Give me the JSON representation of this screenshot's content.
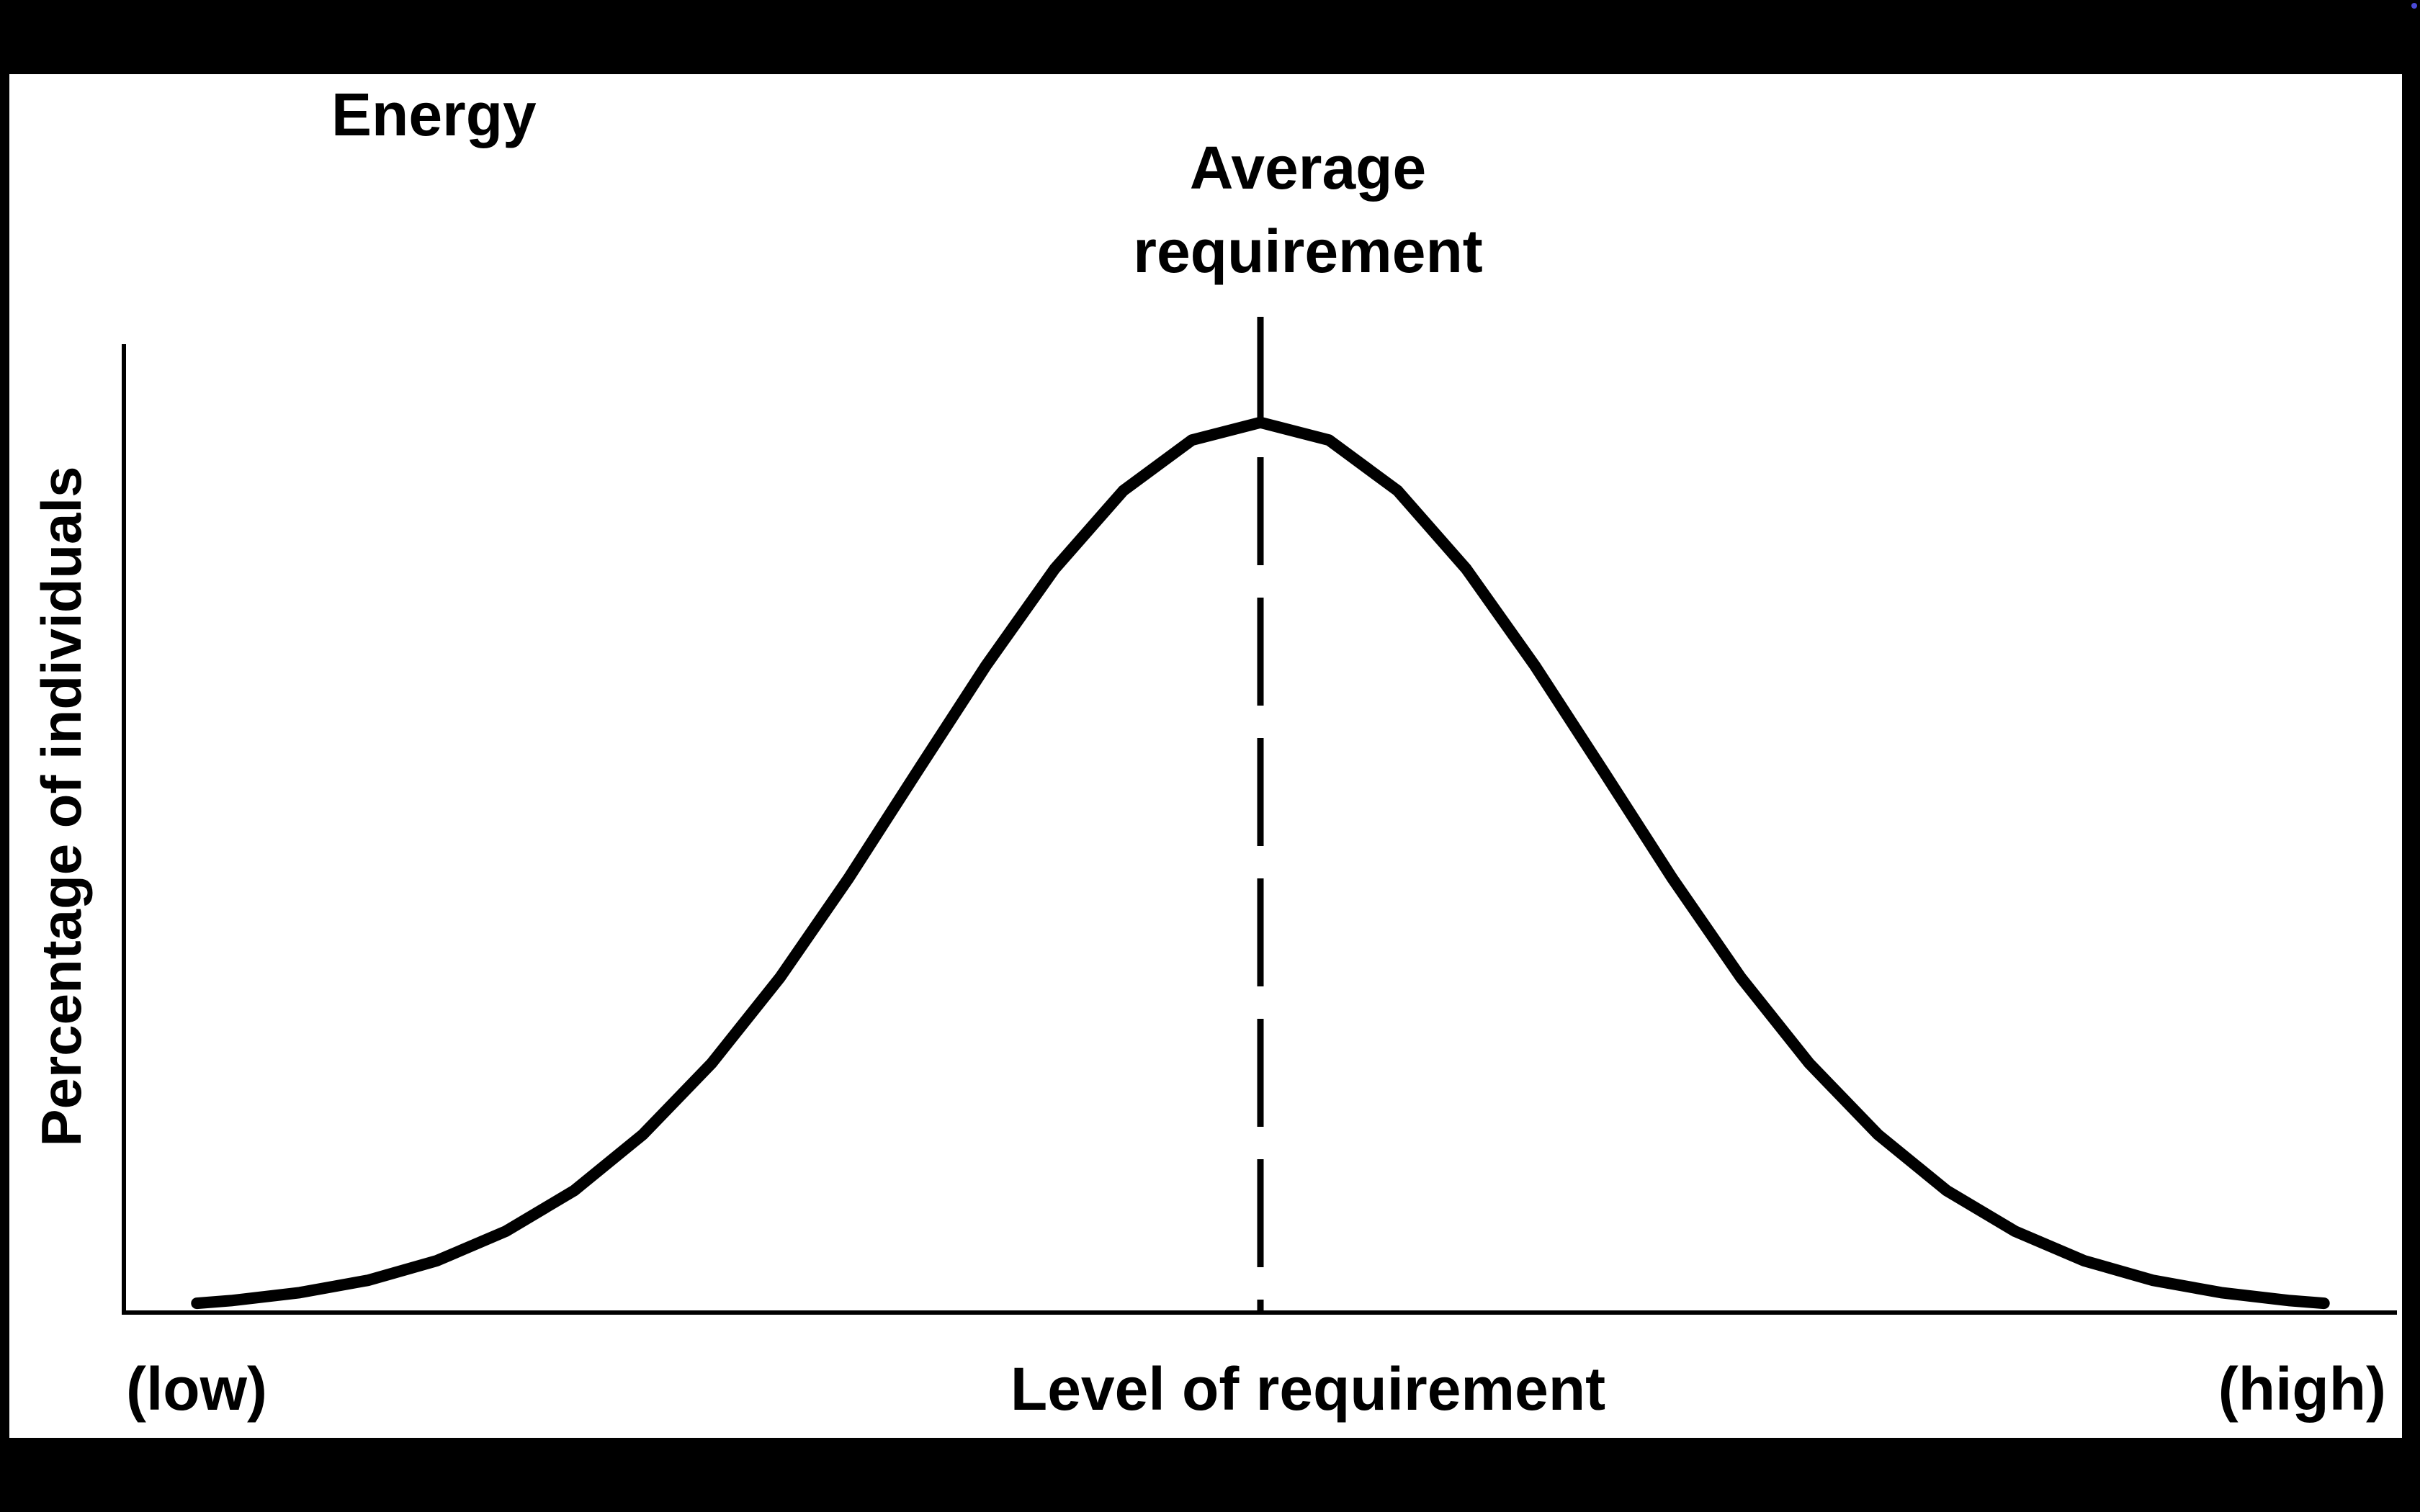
{
  "chart_data": {
    "type": "line",
    "title": "Energy",
    "xlabel": "Level of requirement",
    "ylabel": "Percentage of individuals",
    "x_tick_labels": {
      "low": "(low)",
      "high": "(high)"
    },
    "annotation": {
      "label_line1": "Average",
      "label_line2": "requirement",
      "x": 0,
      "style": "dashed-vertical-line"
    },
    "xlim": [
      -3.3,
      3.3
    ],
    "ylim": [
      0,
      1.08
    ],
    "grid": false,
    "legend": "none",
    "series": [
      {
        "color": "#000000",
        "x": [
          -3.1,
          -3.0,
          -2.8,
          -2.6,
          -2.4,
          -2.2,
          -2.0,
          -1.8,
          -1.6,
          -1.4,
          -1.2,
          -1.0,
          -0.8,
          -0.6,
          -0.4,
          -0.2,
          0.0,
          0.2,
          0.4,
          0.6,
          0.8,
          1.0,
          1.2,
          1.4,
          1.6,
          1.8,
          2.0,
          2.2,
          2.4,
          2.6,
          2.8,
          3.0,
          3.1
        ],
        "y": [
          0.008,
          0.011,
          0.02,
          0.034,
          0.056,
          0.089,
          0.135,
          0.198,
          0.278,
          0.375,
          0.487,
          0.607,
          0.726,
          0.835,
          0.923,
          0.98,
          1.0,
          0.98,
          0.923,
          0.835,
          0.726,
          0.607,
          0.487,
          0.375,
          0.278,
          0.198,
          0.135,
          0.089,
          0.056,
          0.034,
          0.02,
          0.011,
          0.008
        ]
      }
    ]
  }
}
